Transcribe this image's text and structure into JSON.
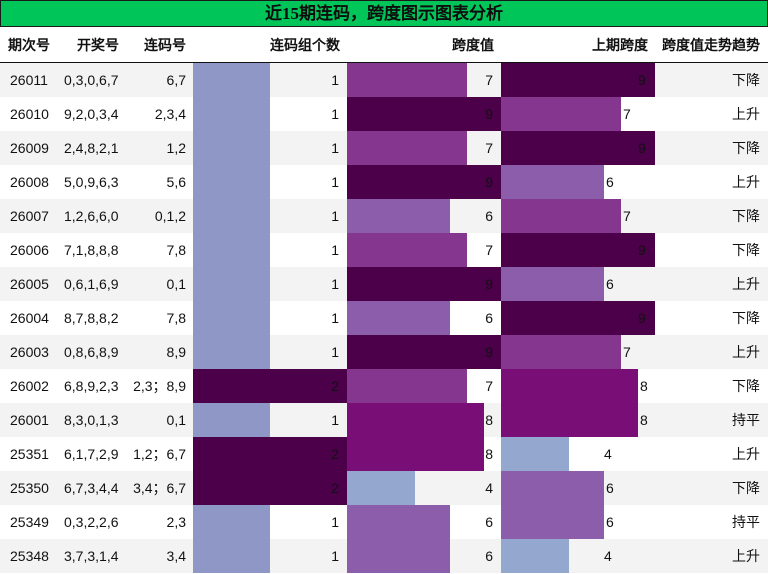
{
  "title": "近15期连码，跨度图示图表分析",
  "headers": {
    "issue": "期次号",
    "draw": "开奖号",
    "pair": "连码号",
    "count": "连码组个数",
    "span": "跨度值",
    "prev_span": "上期跨度",
    "trend": "跨度值走势趋势"
  },
  "colors": {
    "title_bg": "#00c65a",
    "count_1": "#8f97c6",
    "count_2": "#4b0049",
    "span_9": "#4b0049",
    "span_8": "#790e76",
    "span_7": "#85368f",
    "span_6": "#8c5dab",
    "span_4": "#94a8cf",
    "row_alt": "#f3f3f3"
  },
  "rows": [
    {
      "issue": "26011",
      "draw": "0,3,0,6,7",
      "pair": "6,7",
      "count": "1",
      "span": "7",
      "prev_span": "9",
      "trend": "下降"
    },
    {
      "issue": "26010",
      "draw": "9,2,0,3,4",
      "pair": "2,3,4",
      "count": "1",
      "span": "9",
      "prev_span": "7",
      "trend": "上升"
    },
    {
      "issue": "26009",
      "draw": "2,4,8,2,1",
      "pair": "1,2",
      "count": "1",
      "span": "7",
      "prev_span": "9",
      "trend": "下降"
    },
    {
      "issue": "26008",
      "draw": "5,0,9,6,3",
      "pair": "5,6",
      "count": "1",
      "span": "9",
      "prev_span": "6",
      "trend": "上升"
    },
    {
      "issue": "26007",
      "draw": "1,2,6,6,0",
      "pair": "0,1,2",
      "count": "1",
      "span": "6",
      "prev_span": "7",
      "trend": "下降"
    },
    {
      "issue": "26006",
      "draw": "7,1,8,8,8",
      "pair": "7,8",
      "count": "1",
      "span": "7",
      "prev_span": "9",
      "trend": "下降"
    },
    {
      "issue": "26005",
      "draw": "0,6,1,6,9",
      "pair": "0,1",
      "count": "1",
      "span": "9",
      "prev_span": "6",
      "trend": "上升"
    },
    {
      "issue": "26004",
      "draw": "8,7,8,8,2",
      "pair": "7,8",
      "count": "1",
      "span": "6",
      "prev_span": "9",
      "trend": "下降"
    },
    {
      "issue": "26003",
      "draw": "0,8,6,8,9",
      "pair": "8,9",
      "count": "1",
      "span": "9",
      "prev_span": "7",
      "trend": "上升"
    },
    {
      "issue": "26002",
      "draw": "6,8,9,2,3",
      "pair": "2,3；8,9",
      "count": "2",
      "span": "7",
      "prev_span": "8",
      "trend": "下降"
    },
    {
      "issue": "26001",
      "draw": "8,3,0,1,3",
      "pair": "0,1",
      "count": "1",
      "span": "8",
      "prev_span": "8",
      "trend": "持平"
    },
    {
      "issue": "25351",
      "draw": "6,1,7,2,9",
      "pair": "1,2；6,7",
      "count": "2",
      "span": "8",
      "prev_span": "4",
      "trend": "上升"
    },
    {
      "issue": "25350",
      "draw": "6,7,3,4,4",
      "pair": "3,4；6,7",
      "count": "2",
      "span": "4",
      "prev_span": "6",
      "trend": "下降"
    },
    {
      "issue": "25349",
      "draw": "0,3,2,2,6",
      "pair": "2,3",
      "count": "1",
      "span": "6",
      "prev_span": "6",
      "trend": "持平"
    },
    {
      "issue": "25348",
      "draw": "3,7,3,1,4",
      "pair": "3,4",
      "count": "1",
      "span": "6",
      "prev_span": "4",
      "trend": "上升"
    }
  ]
}
